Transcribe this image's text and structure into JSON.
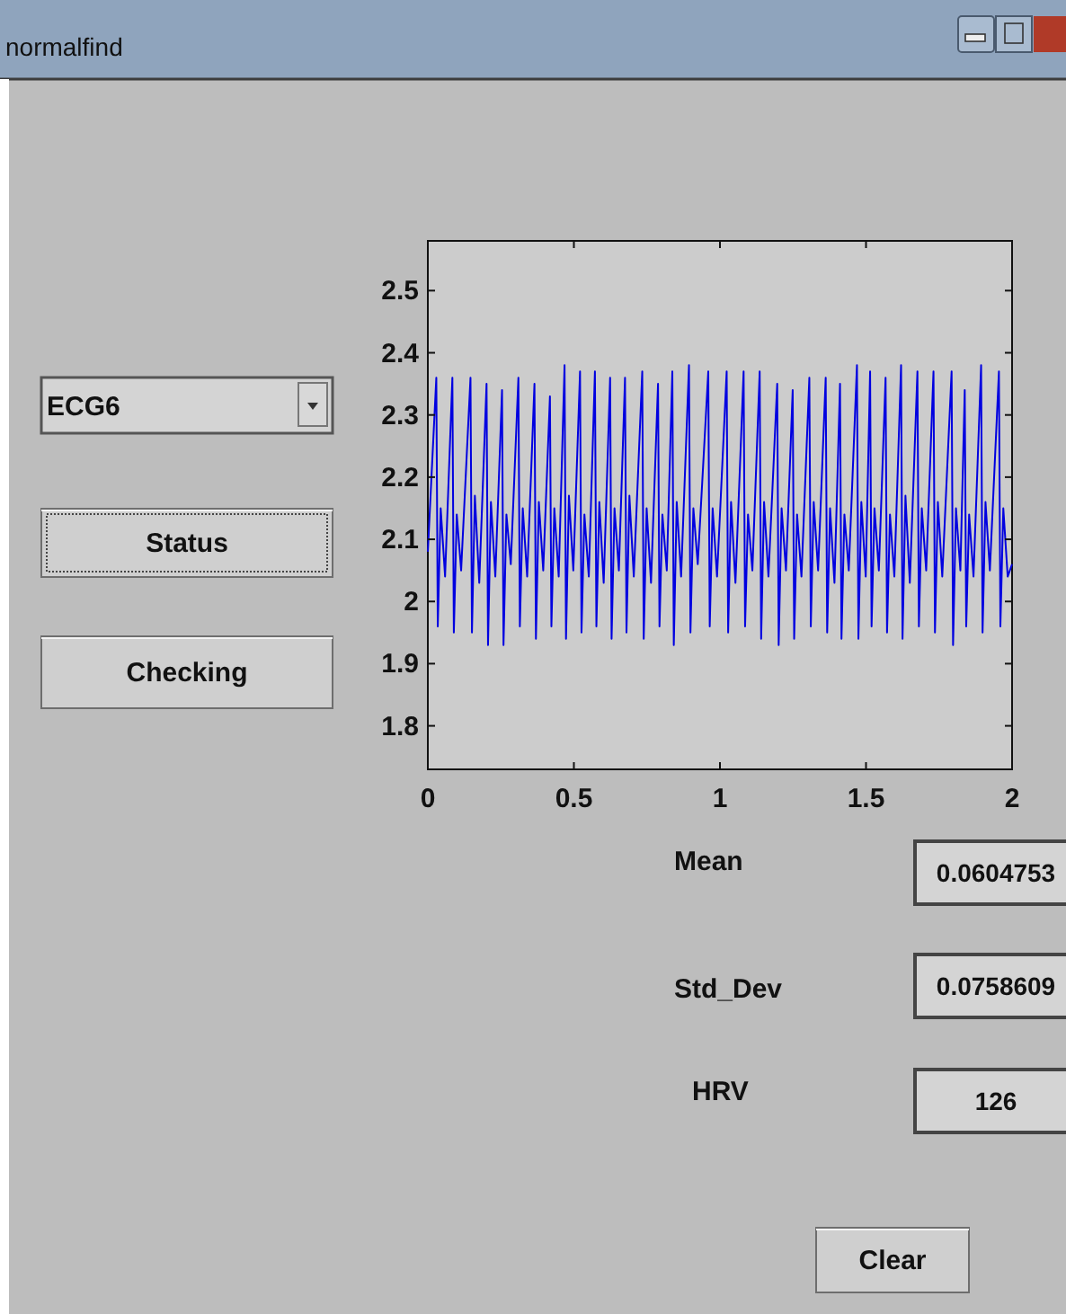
{
  "chart_data": {
    "type": "line",
    "title": "normalfind",
    "annotations": [
      "ECG6",
      "Status",
      "Checking",
      "Mean",
      "0.0604753",
      "Std_Dev",
      "0.0758609",
      "HRV",
      "126",
      "Clear"
    ],
    "xlim": [
      0,
      2
    ],
    "xticks": [
      0,
      0.5,
      1,
      1.5,
      2
    ],
    "ylim": [
      1.73,
      2.58
    ],
    "yticks": [
      1.8,
      1.9,
      2,
      2.1,
      2.2,
      2.3,
      2.4,
      2.5
    ],
    "grid": false,
    "series": [
      {
        "color": "#0000e0",
        "line_style": "solid",
        "x": [
          0,
          0.029,
          0.034,
          0.044,
          0.059,
          0.084,
          0.089,
          0.099,
          0.114,
          0.146,
          0.151,
          0.161,
          0.176,
          0.201,
          0.206,
          0.216,
          0.231,
          0.254,
          0.259,
          0.269,
          0.284,
          0.31,
          0.315,
          0.325,
          0.34,
          0.365,
          0.37,
          0.38,
          0.395,
          0.418,
          0.423,
          0.433,
          0.448,
          0.468,
          0.473,
          0.483,
          0.498,
          0.521,
          0.526,
          0.536,
          0.551,
          0.572,
          0.577,
          0.587,
          0.602,
          0.624,
          0.629,
          0.639,
          0.654,
          0.675,
          0.68,
          0.69,
          0.705,
          0.734,
          0.739,
          0.749,
          0.764,
          0.788,
          0.793,
          0.803,
          0.818,
          0.837,
          0.842,
          0.852,
          0.867,
          0.894,
          0.899,
          0.909,
          0.924,
          0.96,
          0.965,
          0.975,
          0.99,
          1.023,
          1.028,
          1.038,
          1.053,
          1.081,
          1.086,
          1.096,
          1.111,
          1.136,
          1.141,
          1.151,
          1.166,
          1.196,
          1.201,
          1.211,
          1.226,
          1.249,
          1.254,
          1.264,
          1.279,
          1.306,
          1.311,
          1.321,
          1.336,
          1.362,
          1.367,
          1.377,
          1.392,
          1.411,
          1.416,
          1.426,
          1.441,
          1.469,
          1.474,
          1.484,
          1.499,
          1.514,
          1.519,
          1.529,
          1.544,
          1.567,
          1.572,
          1.582,
          1.597,
          1.62,
          1.625,
          1.635,
          1.65,
          1.676,
          1.681,
          1.691,
          1.706,
          1.731,
          1.736,
          1.746,
          1.761,
          1.793,
          1.798,
          1.808,
          1.823,
          1.838,
          1.843,
          1.853,
          1.868,
          1.894,
          1.899,
          1.909,
          1.924,
          1.955,
          1.96,
          1.97,
          1.985,
          2
        ],
        "values": [
          2.08,
          2.36,
          1.96,
          2.15,
          2.04,
          2.36,
          1.95,
          2.14,
          2.05,
          2.36,
          1.95,
          2.17,
          2.03,
          2.35,
          1.93,
          2.16,
          2.04,
          2.34,
          1.93,
          2.14,
          2.06,
          2.36,
          1.96,
          2.15,
          2.04,
          2.35,
          1.94,
          2.16,
          2.05,
          2.33,
          1.96,
          2.15,
          2.04,
          2.38,
          1.94,
          2.17,
          2.05,
          2.37,
          1.95,
          2.14,
          2.04,
          2.37,
          1.96,
          2.16,
          2.03,
          2.36,
          1.94,
          2.15,
          2.05,
          2.36,
          1.95,
          2.17,
          2.04,
          2.37,
          1.94,
          2.15,
          2.03,
          2.35,
          1.96,
          2.14,
          2.05,
          2.37,
          1.93,
          2.16,
          2.04,
          2.38,
          1.95,
          2.15,
          2.06,
          2.37,
          1.96,
          2.15,
          2.04,
          2.37,
          1.95,
          2.16,
          2.03,
          2.37,
          1.96,
          2.14,
          2.05,
          2.37,
          1.94,
          2.16,
          2.04,
          2.35,
          1.93,
          2.15,
          2.05,
          2.34,
          1.94,
          2.14,
          2.04,
          2.36,
          1.96,
          2.16,
          2.05,
          2.36,
          1.95,
          2.15,
          2.03,
          2.35,
          1.94,
          2.14,
          2.05,
          2.38,
          1.94,
          2.16,
          2.04,
          2.37,
          1.96,
          2.15,
          2.05,
          2.36,
          1.95,
          2.14,
          2.04,
          2.38,
          1.94,
          2.17,
          2.03,
          2.37,
          1.96,
          2.15,
          2.05,
          2.37,
          1.95,
          2.16,
          2.04,
          2.37,
          1.93,
          2.15,
          2.05,
          2.34,
          1.96,
          2.14,
          2.04,
          2.38,
          1.95,
          2.16,
          2.05,
          2.37,
          1.96,
          2.15,
          2.04,
          2.06
        ]
      }
    ]
  }
}
